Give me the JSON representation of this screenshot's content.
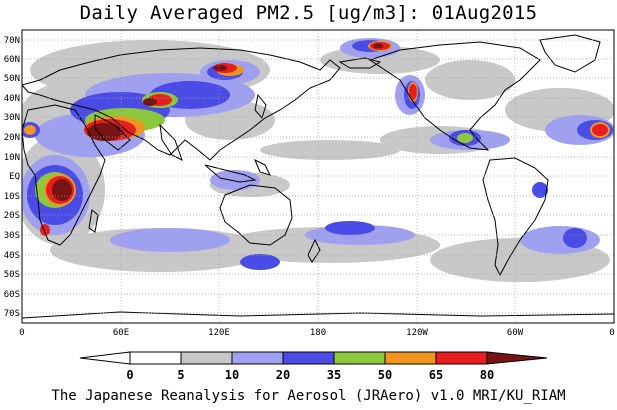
{
  "map": {
    "title": "Daily Averaged PM2.5 [ug/m3]: 01Aug2015",
    "footer": "The Japanese Reanalysis for Aerosol (JRAero) v1.0 MRI/KU_RIAM",
    "lat_labels": [
      "70N",
      "60N",
      "50N",
      "40N",
      "30N",
      "20N",
      "10N",
      "EQ",
      "10S",
      "20S",
      "30S",
      "40S",
      "50S",
      "60S",
      "70S"
    ],
    "lon_labels": [
      "0",
      "60E",
      "120E",
      "180",
      "120W",
      "60W",
      "0"
    ],
    "colorbar": {
      "labels": [
        "0",
        "5",
        "10",
        "20",
        "35",
        "50",
        "65",
        "80"
      ],
      "colors": [
        "#ffffff",
        "#c8c8c8",
        "#a0a0f0",
        "#4b4be6",
        "#8cc83c",
        "#f0961e",
        "#e61e1e",
        "#781414"
      ]
    }
  }
}
